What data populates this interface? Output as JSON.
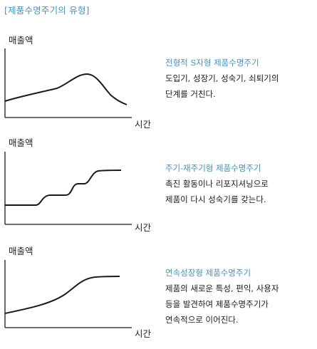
{
  "title": "[제품수명주기의 유형]",
  "panels": [
    {
      "ylabel": "매출액",
      "xlabel": "시간",
      "heading": "전형적 S자형 제품수명주기",
      "description_lines": [
        "도입기, 성장기, 성숙기, 쇠퇴기의",
        "단계를 거친다."
      ]
    },
    {
      "ylabel": "매출액",
      "xlabel": "시간",
      "heading": "주기-재주기형 제품수명주기",
      "description_lines": [
        "촉진 활동이나 리포지셔닝으로",
        "제품이 다시 성숙기를 갖는다."
      ]
    },
    {
      "ylabel": "매출액",
      "xlabel": "시간",
      "heading": "연속성장형 제품수명주기",
      "description_lines": [
        "제품의 새로운 특성, 편익, 사용자",
        "등을 발견하여 제품수명주기가",
        "연속적으로 이어진다."
      ]
    }
  ],
  "colors": {
    "accent": "#4a91b8",
    "text": "#1a1a1a",
    "line": "#1a1a1a"
  }
}
